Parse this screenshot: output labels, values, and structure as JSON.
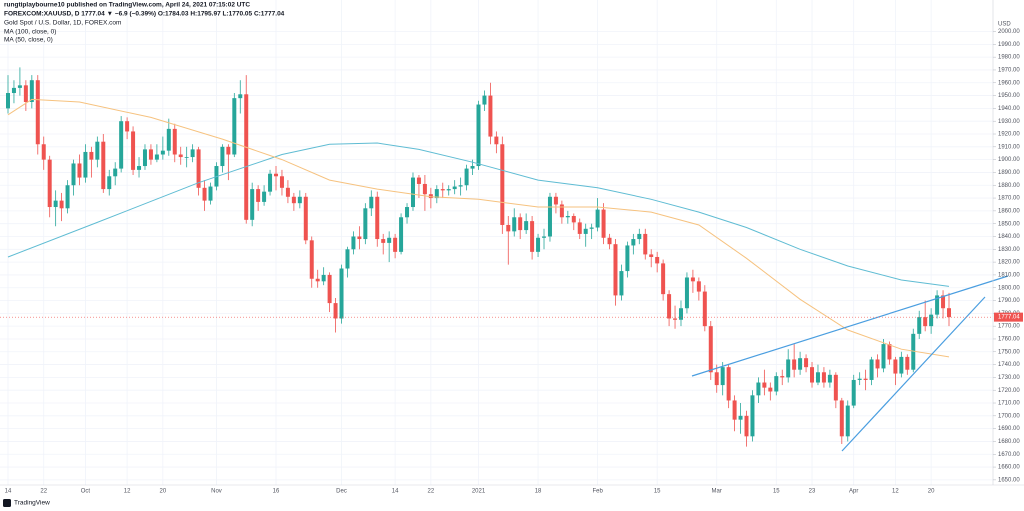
{
  "chart_data": {
    "type": "candlestick",
    "attribution": "rungtiplaybourne10 published on TradingView.com, April 24, 2021 07:15:02 UTC",
    "legend_line": "FOREXCOM:XAUUSD, D  1777.04  ▼ −6.9 (−0.39%)  O:1784.03  H:1795.97  L:1770.05  C:1777.04",
    "title": "Gold Spot / U.S. Dollar, 1D, FOREX.com",
    "currency": "USD",
    "brand": "TradingView",
    "up_color": "#26a69a",
    "down_color": "#ef5350",
    "grid": true,
    "ylim": [
      1646,
      2009
    ],
    "yticks": [
      {
        "value": 1650,
        "label": "1650.00"
      },
      {
        "value": 1660,
        "label": "1660.00"
      },
      {
        "value": 1670,
        "label": "1670.00"
      },
      {
        "value": 1680,
        "label": "1680.00"
      },
      {
        "value": 1690,
        "label": "1690.00"
      },
      {
        "value": 1700,
        "label": "1700.00"
      },
      {
        "value": 1710,
        "label": "1710.00"
      },
      {
        "value": 1720,
        "label": "1720.00"
      },
      {
        "value": 1730,
        "label": "1730.00"
      },
      {
        "value": 1740,
        "label": "1740.00"
      },
      {
        "value": 1750,
        "label": "1750.00"
      },
      {
        "value": 1760,
        "label": "1760.00"
      },
      {
        "value": 1770,
        "label": "1770.00"
      },
      {
        "value": 1780,
        "label": "1780.00"
      },
      {
        "value": 1790,
        "label": "1790.00"
      },
      {
        "value": 1800,
        "label": "1800.00"
      },
      {
        "value": 1810,
        "label": "1810.00"
      },
      {
        "value": 1820,
        "label": "1820.00"
      },
      {
        "value": 1830,
        "label": "1830.00"
      },
      {
        "value": 1840,
        "label": "1840.00"
      },
      {
        "value": 1850,
        "label": "1850.00"
      },
      {
        "value": 1860,
        "label": "1860.00"
      },
      {
        "value": 1870,
        "label": "1870.00"
      },
      {
        "value": 1880,
        "label": "1880.00"
      },
      {
        "value": 1890,
        "label": "1890.00"
      },
      {
        "value": 1900,
        "label": "1900.00"
      },
      {
        "value": 1910,
        "label": "1910.00"
      },
      {
        "value": 1920,
        "label": "1920.00"
      },
      {
        "value": 1930,
        "label": "1930.00"
      },
      {
        "value": 1940,
        "label": "1940.00"
      },
      {
        "value": 1950,
        "label": "1950.00"
      },
      {
        "value": 1960,
        "label": "1960.00"
      },
      {
        "value": 1970,
        "label": "1970.00"
      },
      {
        "value": 1980,
        "label": "1980.00"
      },
      {
        "value": 1990,
        "label": "1990.00"
      },
      {
        "value": 2000,
        "label": "2000.00"
      }
    ],
    "categories": [
      "14",
      null,
      null,
      null,
      null,
      null,
      "22",
      null,
      null,
      null,
      null,
      null,
      null,
      "Oct",
      null,
      null,
      null,
      null,
      null,
      null,
      "12",
      null,
      null,
      null,
      null,
      null,
      "20",
      null,
      null,
      null,
      null,
      null,
      null,
      null,
      null,
      "Nov",
      null,
      null,
      null,
      null,
      null,
      null,
      null,
      null,
      null,
      "16",
      null,
      null,
      null,
      null,
      null,
      null,
      null,
      null,
      null,
      null,
      "Dec",
      null,
      null,
      null,
      null,
      null,
      null,
      null,
      null,
      "14",
      null,
      null,
      null,
      null,
      null,
      "22",
      null,
      null,
      null,
      null,
      null,
      null,
      null,
      "2021",
      null,
      null,
      null,
      null,
      null,
      null,
      null,
      null,
      null,
      "18",
      null,
      null,
      null,
      null,
      null,
      null,
      null,
      null,
      null,
      "Feb",
      null,
      null,
      null,
      null,
      null,
      null,
      null,
      null,
      null,
      "15",
      null,
      null,
      null,
      null,
      null,
      null,
      null,
      null,
      null,
      "Mar",
      null,
      null,
      null,
      null,
      null,
      null,
      null,
      null,
      null,
      "15",
      null,
      null,
      null,
      null,
      null,
      "23",
      null,
      null,
      null,
      null,
      null,
      null,
      "Apr",
      null,
      null,
      null,
      null,
      null,
      null,
      "12",
      null,
      null,
      null,
      null,
      null,
      "20",
      null,
      null,
      null
    ],
    "candles": [
      [
        1940,
        1966,
        1936,
        1952
      ],
      [
        1952,
        1962,
        1944,
        1956
      ],
      [
        1956,
        1972,
        1950,
        1958
      ],
      [
        1958,
        1962,
        1938,
        1945
      ],
      [
        1945,
        1966,
        1940,
        1962
      ],
      [
        1962,
        1966,
        1904,
        1912
      ],
      [
        1912,
        1918,
        1892,
        1900
      ],
      [
        1900,
        1903,
        1855,
        1863
      ],
      [
        1863,
        1876,
        1848,
        1868
      ],
      [
        1868,
        1874,
        1852,
        1862
      ],
      [
        1862,
        1884,
        1858,
        1880
      ],
      [
        1880,
        1900,
        1872,
        1897
      ],
      [
        1897,
        1904,
        1880,
        1886
      ],
      [
        1886,
        1912,
        1882,
        1906
      ],
      [
        1906,
        1910,
        1886,
        1900
      ],
      [
        1900,
        1918,
        1894,
        1914
      ],
      [
        1914,
        1920,
        1874,
        1877
      ],
      [
        1877,
        1892,
        1872,
        1887
      ],
      [
        1887,
        1898,
        1880,
        1893
      ],
      [
        1893,
        1934,
        1890,
        1930
      ],
      [
        1930,
        1933,
        1916,
        1922
      ],
      [
        1922,
        1926,
        1888,
        1892
      ],
      [
        1892,
        1902,
        1886,
        1895
      ],
      [
        1895,
        1912,
        1892,
        1908
      ],
      [
        1908,
        1912,
        1896,
        1900
      ],
      [
        1900,
        1912,
        1898,
        1904
      ],
      [
        1904,
        1918,
        1900,
        1907
      ],
      [
        1907,
        1932,
        1903,
        1924
      ],
      [
        1924,
        1928,
        1898,
        1904
      ],
      [
        1904,
        1910,
        1896,
        1902
      ],
      [
        1902,
        1910,
        1894,
        1902
      ],
      [
        1902,
        1912,
        1898,
        1908
      ],
      [
        1908,
        1910,
        1872,
        1878
      ],
      [
        1878,
        1884,
        1860,
        1868
      ],
      [
        1868,
        1882,
        1865,
        1879
      ],
      [
        1879,
        1898,
        1876,
        1895
      ],
      [
        1895,
        1912,
        1890,
        1910
      ],
      [
        1910,
        1912,
        1884,
        1904
      ],
      [
        1904,
        1952,
        1902,
        1948
      ],
      [
        1948,
        1962,
        1936,
        1951
      ],
      [
        1951,
        1966,
        1850,
        1853
      ],
      [
        1853,
        1882,
        1848,
        1877
      ],
      [
        1877,
        1880,
        1860,
        1867
      ],
      [
        1867,
        1880,
        1864,
        1875
      ],
      [
        1875,
        1892,
        1872,
        1889
      ],
      [
        1889,
        1895,
        1876,
        1887
      ],
      [
        1887,
        1892,
        1872,
        1878
      ],
      [
        1878,
        1884,
        1866,
        1871
      ],
      [
        1871,
        1874,
        1860,
        1866
      ],
      [
        1866,
        1876,
        1862,
        1871
      ],
      [
        1871,
        1874,
        1834,
        1837
      ],
      [
        1837,
        1840,
        1800,
        1807
      ],
      [
        1807,
        1814,
        1800,
        1805
      ],
      [
        1805,
        1816,
        1802,
        1810
      ],
      [
        1810,
        1812,
        1781,
        1788
      ],
      [
        1788,
        1792,
        1765,
        1776
      ],
      [
        1776,
        1818,
        1772,
        1815
      ],
      [
        1815,
        1832,
        1808,
        1830
      ],
      [
        1830,
        1844,
        1826,
        1840
      ],
      [
        1840,
        1848,
        1830,
        1838
      ],
      [
        1838,
        1866,
        1834,
        1862
      ],
      [
        1862,
        1876,
        1856,
        1871
      ],
      [
        1871,
        1875,
        1832,
        1838
      ],
      [
        1838,
        1842,
        1826,
        1835
      ],
      [
        1835,
        1844,
        1820,
        1839
      ],
      [
        1839,
        1842,
        1823,
        1828
      ],
      [
        1828,
        1858,
        1826,
        1855
      ],
      [
        1855,
        1866,
        1850,
        1863
      ],
      [
        1863,
        1890,
        1860,
        1886
      ],
      [
        1886,
        1888,
        1870,
        1881
      ],
      [
        1881,
        1888,
        1860,
        1873
      ],
      [
        1873,
        1878,
        1862,
        1870
      ],
      [
        1870,
        1880,
        1866,
        1877
      ],
      [
        1877,
        1882,
        1870,
        1876
      ],
      [
        1876,
        1880,
        1872,
        1877
      ],
      [
        1877,
        1884,
        1873,
        1879
      ],
      [
        1879,
        1886,
        1872,
        1880
      ],
      [
        1880,
        1896,
        1876,
        1893
      ],
      [
        1893,
        1900,
        1888,
        1895
      ],
      [
        1895,
        1946,
        1892,
        1943
      ],
      [
        1943,
        1954,
        1938,
        1950
      ],
      [
        1950,
        1960,
        1912,
        1918
      ],
      [
        1918,
        1922,
        1905,
        1912
      ],
      [
        1912,
        1918,
        1842,
        1849
      ],
      [
        1849,
        1856,
        1818,
        1844
      ],
      [
        1844,
        1862,
        1840,
        1855
      ],
      [
        1855,
        1858,
        1838,
        1845
      ],
      [
        1845,
        1858,
        1842,
        1852
      ],
      [
        1852,
        1856,
        1822,
        1828
      ],
      [
        1828,
        1842,
        1824,
        1839
      ],
      [
        1839,
        1846,
        1830,
        1840
      ],
      [
        1840,
        1874,
        1836,
        1871
      ],
      [
        1871,
        1874,
        1858,
        1865
      ],
      [
        1865,
        1868,
        1850,
        1855
      ],
      [
        1855,
        1860,
        1850,
        1856
      ],
      [
        1856,
        1858,
        1845,
        1851
      ],
      [
        1851,
        1854,
        1838,
        1842
      ],
      [
        1842,
        1850,
        1832,
        1846
      ],
      [
        1846,
        1850,
        1838,
        1847
      ],
      [
        1847,
        1870,
        1844,
        1861
      ],
      [
        1861,
        1866,
        1834,
        1839
      ],
      [
        1839,
        1842,
        1830,
        1834
      ],
      [
        1834,
        1838,
        1786,
        1794
      ],
      [
        1794,
        1818,
        1790,
        1813
      ],
      [
        1813,
        1836,
        1808,
        1833
      ],
      [
        1833,
        1842,
        1826,
        1838
      ],
      [
        1838,
        1846,
        1834,
        1842
      ],
      [
        1842,
        1846,
        1822,
        1826
      ],
      [
        1826,
        1830,
        1816,
        1824
      ],
      [
        1824,
        1828,
        1812,
        1819
      ],
      [
        1819,
        1822,
        1790,
        1795
      ],
      [
        1795,
        1798,
        1770,
        1776
      ],
      [
        1776,
        1786,
        1768,
        1775
      ],
      [
        1775,
        1790,
        1770,
        1784
      ],
      [
        1784,
        1812,
        1780,
        1808
      ],
      [
        1808,
        1814,
        1796,
        1805
      ],
      [
        1805,
        1808,
        1790,
        1797
      ],
      [
        1797,
        1802,
        1766,
        1770
      ],
      [
        1770,
        1774,
        1728,
        1734
      ],
      [
        1734,
        1740,
        1718,
        1724
      ],
      [
        1724,
        1742,
        1716,
        1738
      ],
      [
        1738,
        1740,
        1706,
        1712
      ],
      [
        1712,
        1716,
        1688,
        1697
      ],
      [
        1697,
        1710,
        1686,
        1700
      ],
      [
        1700,
        1704,
        1676,
        1684
      ],
      [
        1684,
        1720,
        1680,
        1716
      ],
      [
        1716,
        1730,
        1710,
        1726
      ],
      [
        1726,
        1736,
        1716,
        1722
      ],
      [
        1722,
        1726,
        1712,
        1719
      ],
      [
        1719,
        1734,
        1716,
        1731
      ],
      [
        1731,
        1736,
        1724,
        1730
      ],
      [
        1730,
        1752,
        1726,
        1744
      ],
      [
        1744,
        1756,
        1730,
        1736
      ],
      [
        1736,
        1750,
        1732,
        1745
      ],
      [
        1745,
        1748,
        1734,
        1738
      ],
      [
        1738,
        1742,
        1722,
        1726
      ],
      [
        1726,
        1740,
        1724,
        1734
      ],
      [
        1734,
        1738,
        1722,
        1726
      ],
      [
        1726,
        1736,
        1722,
        1732
      ],
      [
        1732,
        1734,
        1706,
        1712
      ],
      [
        1712,
        1714,
        1678,
        1684
      ],
      [
        1684,
        1712,
        1680,
        1708
      ],
      [
        1708,
        1732,
        1706,
        1728
      ],
      [
        1728,
        1734,
        1724,
        1729
      ],
      [
        1729,
        1736,
        1720,
        1728
      ],
      [
        1728,
        1746,
        1724,
        1744
      ],
      [
        1744,
        1748,
        1730,
        1737
      ],
      [
        1737,
        1760,
        1734,
        1756
      ],
      [
        1756,
        1758,
        1740,
        1744
      ],
      [
        1744,
        1746,
        1724,
        1733
      ],
      [
        1733,
        1750,
        1730,
        1746
      ],
      [
        1746,
        1748,
        1732,
        1736
      ],
      [
        1736,
        1768,
        1734,
        1764
      ],
      [
        1764,
        1782,
        1760,
        1777
      ],
      [
        1777,
        1790,
        1766,
        1770
      ],
      [
        1770,
        1784,
        1764,
        1779
      ],
      [
        1779,
        1798,
        1776,
        1794
      ],
      [
        1794,
        1798,
        1776,
        1784
      ],
      [
        1784.03,
        1795.97,
        1770.05,
        1777.04
      ]
    ],
    "series": [
      {
        "name": "MA (100, close, 0)",
        "color": "#5fbcd3",
        "x": [
          0,
          15,
          32,
          46,
          54,
          62,
          69,
          78,
          89,
          99,
          108,
          116,
          124,
          133,
          141,
          150,
          158
        ],
        "values": [
          1824,
          1851,
          1882,
          1904,
          1912,
          1913,
          1908,
          1898,
          1884,
          1878,
          1869,
          1859,
          1847,
          1830,
          1817,
          1806,
          1801
        ]
      },
      {
        "name": "MA (50, close, 0)",
        "color": "#f6c27f",
        "x": [
          0,
          4,
          12,
          24,
          36,
          46,
          54,
          62,
          71,
          79,
          89,
          99,
          108,
          116,
          124,
          133,
          141,
          150,
          158
        ],
        "values": [
          1935,
          1947,
          1945,
          1933,
          1916,
          1900,
          1884,
          1877,
          1871,
          1869,
          1863,
          1863,
          1859,
          1849,
          1823,
          1791,
          1767,
          1752,
          1746
        ]
      }
    ]
  }
}
